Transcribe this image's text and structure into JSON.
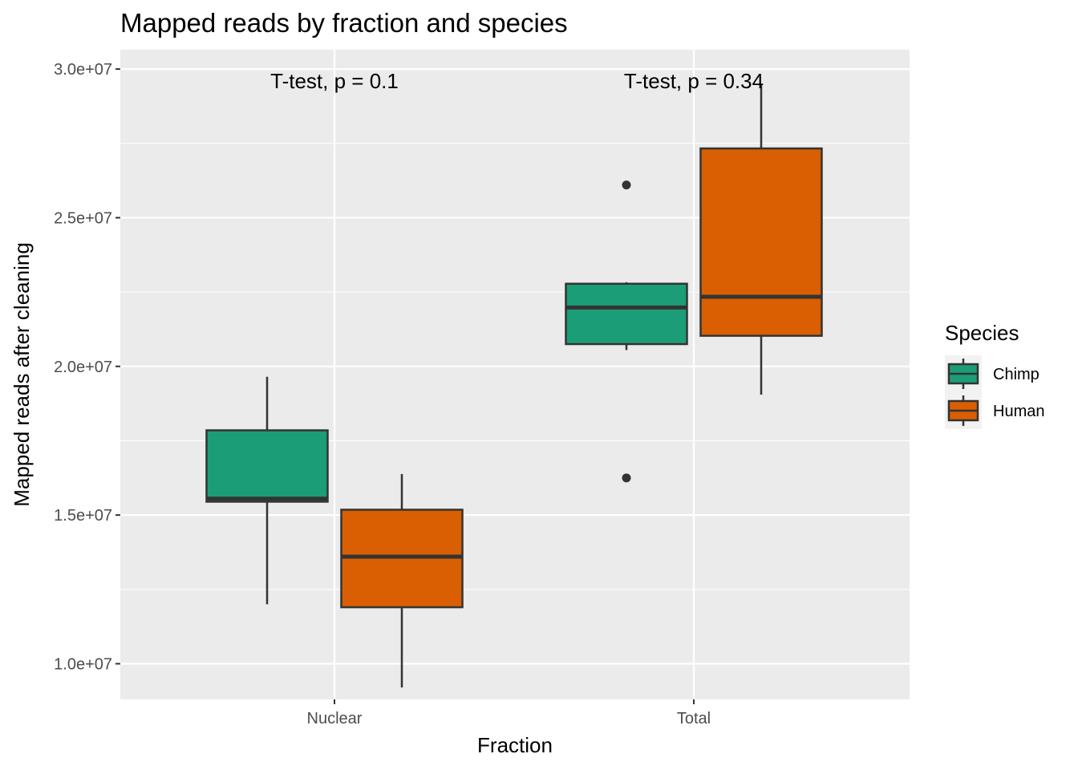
{
  "chart_data": {
    "type": "boxplot",
    "title": "Mapped reads by fraction and species",
    "xlabel": "Fraction",
    "ylabel": "Mapped reads after cleaning",
    "categories": [
      "Nuclear",
      "Total"
    ],
    "ylim": [
      8800000,
      30650000
    ],
    "yticks": [
      {
        "value": 10000000,
        "label": "1.0e+07"
      },
      {
        "value": 15000000,
        "label": "1.5e+07"
      },
      {
        "value": 20000000,
        "label": "2.0e+07"
      },
      {
        "value": 25000000,
        "label": "2.5e+07"
      },
      {
        "value": 30000000,
        "label": "3.0e+07"
      }
    ],
    "legend": {
      "title": "Species",
      "position": "right"
    },
    "grid": true,
    "series": [
      {
        "name": "Chimp",
        "color": "#1B9E77",
        "boxes": [
          {
            "category": "Nuclear",
            "whisker_low": 12000000,
            "q1": 15450000,
            "median": 15550000,
            "q3": 17850000,
            "whisker_high": 19650000,
            "outliers": []
          },
          {
            "category": "Total",
            "whisker_low": 20550000,
            "q1": 20750000,
            "median": 21980000,
            "q3": 22780000,
            "whisker_high": 22830000,
            "outliers": [
              26100000,
              16250000
            ]
          }
        ]
      },
      {
        "name": "Human",
        "color": "#D95F02",
        "boxes": [
          {
            "category": "Nuclear",
            "whisker_low": 9200000,
            "q1": 11900000,
            "median": 13600000,
            "q3": 15180000,
            "whisker_high": 16380000,
            "outliers": []
          },
          {
            "category": "Total",
            "whisker_low": 19050000,
            "q1": 21030000,
            "median": 22340000,
            "q3": 27330000,
            "whisker_high": 29500000,
            "outliers": []
          }
        ]
      }
    ],
    "annotations": [
      {
        "category": "Nuclear",
        "y": 29600000,
        "text": "T-test, p = 0.1"
      },
      {
        "category": "Total",
        "y": 29600000,
        "text": "T-test, p = 0.34"
      }
    ]
  }
}
